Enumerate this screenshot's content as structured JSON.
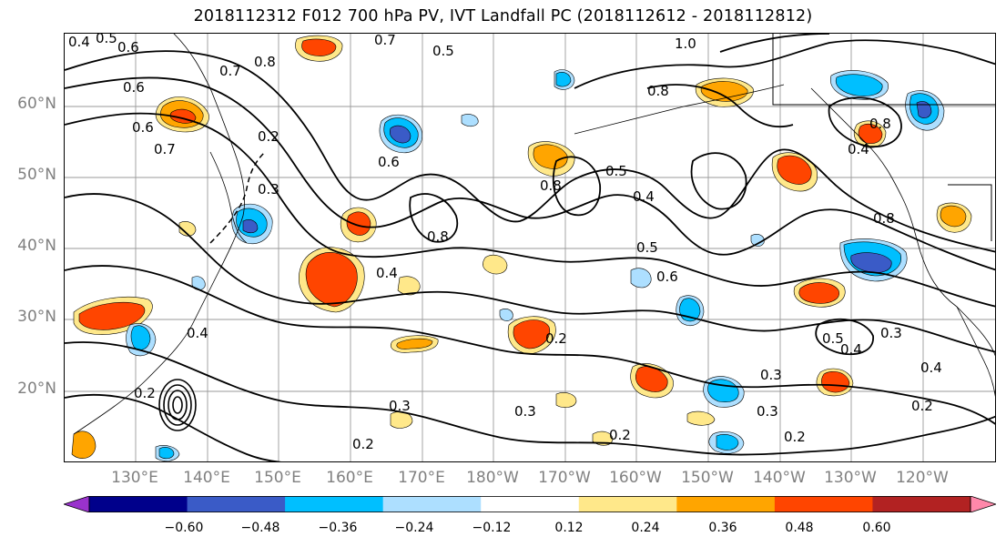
{
  "title": "2018112312 F012 700 hPa PV, IVT Landfall PC (2018112612 - 2018112812)",
  "lat_labels": [
    "60°N",
    "50°N",
    "40°N",
    "30°N",
    "20°N"
  ],
  "lon_labels": [
    "130°E",
    "140°E",
    "150°E",
    "160°E",
    "170°E",
    "180°W",
    "170°W",
    "160°W",
    "150°W",
    "140°W",
    "130°W",
    "120°W"
  ],
  "colorbar": {
    "tick_labels": [
      "−0.60",
      "−0.48",
      "−0.36",
      "−0.24",
      "−0.12",
      "0.12",
      "0.24",
      "0.36",
      "0.48",
      "0.60"
    ],
    "colors": [
      "#9932CC",
      "#00008B",
      "#3A5BC7",
      "#00BFFF",
      "#ADDFFF",
      "#FFFFFF",
      "#FFE88A",
      "#FFA500",
      "#FF4500",
      "#B22222",
      "#FF88AA"
    ]
  },
  "contour_labels": [
    "0.4",
    "0.5",
    "0.6",
    "0.7",
    "0.8",
    "1.0",
    "0.7",
    "0.6",
    "0.8",
    "0.2",
    "0.5",
    "0.6",
    "0.8",
    "0.5",
    "0.4",
    "0.8",
    "0.4",
    "0.5",
    "0.6",
    "0.4",
    "0.3",
    "0.2",
    "0.3",
    "0.2",
    "0.4",
    "0.5",
    "0.3",
    "0.4",
    "0.2",
    "0.2",
    "0.3",
    "0.3",
    "0.2",
    "0.3",
    "0.2",
    "0.8",
    "0.4",
    "0.8",
    "0.7",
    "0.6"
  ],
  "colors": {
    "negative": "#00BFFF",
    "positive": "#FFA500",
    "contour": "#000000",
    "grid": "#9a9a9a",
    "axis_label": "#808080"
  }
}
